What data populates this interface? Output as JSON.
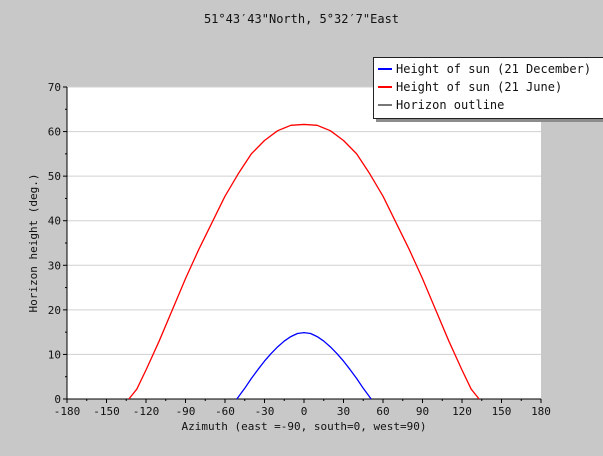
{
  "chart_data": {
    "type": "line",
    "title": "51°43′43\"North, 5°32′7\"East",
    "xlabel": "Azimuth (east =-90, south=0, west=90)",
    "ylabel": "Horizon height (deg.)",
    "xlim": [
      -180,
      180
    ],
    "ylim": [
      0,
      70
    ],
    "xticks": [
      -180,
      -150,
      -120,
      -90,
      -60,
      -30,
      0,
      30,
      60,
      90,
      120,
      150,
      180
    ],
    "yticks": [
      0,
      10,
      20,
      30,
      40,
      50,
      60,
      70
    ],
    "grid": "horizontal",
    "legend_position": "top-right",
    "series": [
      {
        "name": "Height of sun (21 December)",
        "color": "#0000ff",
        "x": [
          -51,
          -45,
          -40,
          -35,
          -30,
          -25,
          -20,
          -15,
          -10,
          -5,
          0,
          5,
          10,
          15,
          20,
          25,
          30,
          35,
          40,
          45,
          51
        ],
        "y": [
          0,
          2.4,
          4.6,
          6.6,
          8.5,
          10.2,
          11.7,
          13.0,
          14.0,
          14.7,
          14.9,
          14.7,
          14.0,
          13.0,
          11.7,
          10.2,
          8.5,
          6.6,
          4.6,
          2.4,
          0
        ]
      },
      {
        "name": "Height of sun (21 June)",
        "color": "#ff0000",
        "x": [
          -133,
          -127,
          -120,
          -110,
          -100,
          -90,
          -80,
          -70,
          -60,
          -50,
          -40,
          -30,
          -20,
          -10,
          0,
          10,
          20,
          30,
          40,
          50,
          60,
          70,
          80,
          90,
          100,
          110,
          120,
          127,
          133
        ],
        "y": [
          0,
          2.2,
          6.5,
          13.0,
          20.0,
          27.0,
          33.5,
          39.5,
          45.5,
          50.5,
          55.0,
          58.0,
          60.2,
          61.4,
          61.6,
          61.4,
          60.2,
          58.0,
          55.0,
          50.5,
          45.5,
          39.5,
          33.5,
          27.0,
          20.0,
          13.0,
          6.5,
          2.2,
          0
        ]
      },
      {
        "name": "Horizon outline",
        "color": "#777777",
        "x": [
          -180,
          180
        ],
        "y": [
          0,
          0
        ]
      }
    ]
  }
}
